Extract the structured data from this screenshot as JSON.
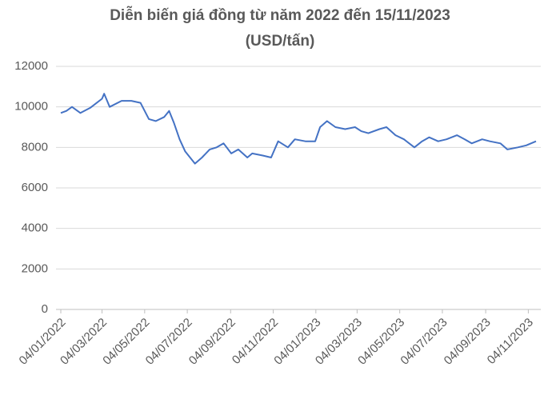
{
  "chart_data": {
    "type": "line",
    "title": "Diễn biến giá đồng từ năm 2022 đến 15/11/2023",
    "subtitle": "(USD/tấn)",
    "x": [
      "04/01/2022",
      "12/01/2022",
      "20/01/2022",
      "01/02/2022",
      "15/02/2022",
      "04/03/2022",
      "07/03/2022",
      "15/03/2022",
      "01/04/2022",
      "15/04/2022",
      "28/04/2022",
      "10/05/2022",
      "20/05/2022",
      "01/06/2022",
      "08/06/2022",
      "15/06/2022",
      "23/06/2022",
      "01/07/2022",
      "15/07/2022",
      "25/07/2022",
      "05/08/2022",
      "15/08/2022",
      "25/08/2022",
      "05/09/2022",
      "15/09/2022",
      "28/09/2022",
      "05/10/2022",
      "20/10/2022",
      "01/11/2022",
      "11/11/2022",
      "25/11/2022",
      "05/12/2022",
      "20/12/2022",
      "03/01/2023",
      "10/01/2023",
      "20/01/2023",
      "01/02/2023",
      "15/02/2023",
      "01/03/2023",
      "10/03/2023",
      "20/03/2023",
      "05/04/2023",
      "15/04/2023",
      "28/04/2023",
      "10/05/2023",
      "25/05/2023",
      "05/06/2023",
      "15/06/2023",
      "28/06/2023",
      "10/07/2023",
      "25/07/2023",
      "05/08/2023",
      "15/08/2023",
      "30/08/2023",
      "10/09/2023",
      "25/09/2023",
      "05/10/2023",
      "20/10/2023",
      "01/11/2023",
      "15/11/2023"
    ],
    "series": [
      {
        "name": "Giá đồng",
        "color": "#4472c4",
        "values": [
          9700,
          9800,
          10000,
          9700,
          9950,
          10400,
          10650,
          10000,
          10300,
          10300,
          10200,
          9400,
          9300,
          9500,
          9800,
          9200,
          8400,
          7800,
          7200,
          7500,
          7900,
          8000,
          8200,
          7700,
          7900,
          7500,
          7700,
          7600,
          7500,
          8300,
          8000,
          8400,
          8300,
          8300,
          9000,
          9300,
          9000,
          8900,
          9000,
          8800,
          8700,
          8900,
          9000,
          8600,
          8400,
          8000,
          8300,
          8500,
          8300,
          8400,
          8600,
          8400,
          8200,
          8400,
          8300,
          8200,
          7900,
          8000,
          8100,
          8300
        ]
      }
    ],
    "xlim": [
      "04/01/2022",
      "15/11/2023"
    ],
    "xticks": [
      "04/01/2022",
      "04/03/2022",
      "04/05/2022",
      "04/07/2022",
      "04/09/2022",
      "04/11/2022",
      "04/01/2023",
      "04/03/2023",
      "04/05/2023",
      "04/07/2023",
      "04/09/2023",
      "04/11/2023"
    ],
    "ylim": [
      0,
      12000
    ],
    "yticks": [
      0,
      2000,
      4000,
      6000,
      8000,
      10000,
      12000
    ],
    "grid": true
  }
}
